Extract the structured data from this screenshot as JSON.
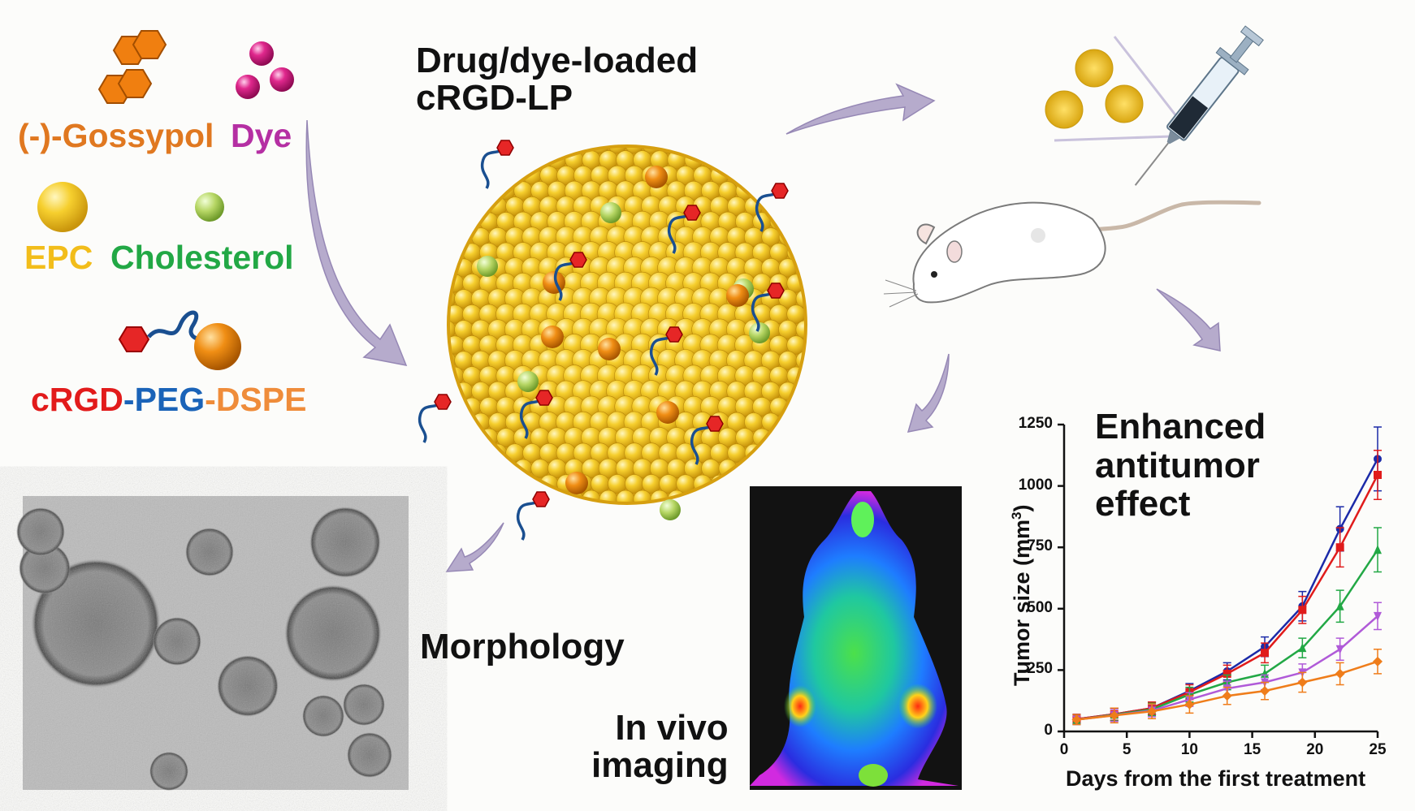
{
  "components": {
    "gossypol": "(-)-Gossypol",
    "dye": "Dye",
    "epc": "EPC",
    "cholesterol": "Cholesterol",
    "crgd": "cRGD",
    "dash1": "-",
    "peg": "PEG",
    "dash2": "-",
    "dspe": "DSPE"
  },
  "colors": {
    "gossypol": "#e07820",
    "dye": "#b52fa3",
    "epc": "#f2bd1a",
    "cholesterol": "#22a845",
    "crgd": "#e21b1b",
    "peg": "#1a63b8",
    "dspe": "#ef8c3a",
    "arrow": "#b4aacb",
    "liposome": "#f1c42c"
  },
  "liposome": {
    "title_line1": "Drug/dye-loaded",
    "title_line2": "cRGD-LP"
  },
  "labels": {
    "morphology": "Morphology",
    "invivo_line1": "In vivo",
    "invivo_line2": "imaging",
    "effect_line1": "Enhanced",
    "effect_line2": "antitumor",
    "effect_line3": "effect"
  },
  "icons": [
    "syringe-icon",
    "mouse-icon",
    "nanoparticle-icon",
    "arrow-icon"
  ],
  "chart_data": {
    "type": "line",
    "xlabel": "Days from the first treatment",
    "ylabel": "Tumor size (mm³)",
    "ylabel_main": "Tumor size (mm",
    "ylabel_sup": "3",
    "ylabel_end": ")",
    "xlim": [
      0,
      25
    ],
    "ylim": [
      0,
      1250
    ],
    "xticks": [
      "0",
      "5",
      "10",
      "15",
      "20",
      "25"
    ],
    "yticks": [
      "0",
      "250",
      "500",
      "750",
      "1000",
      "1250"
    ],
    "x": [
      1,
      4,
      7,
      10,
      13,
      16,
      19,
      22,
      25
    ],
    "series": [
      {
        "color": "#1b2aa8",
        "marker": "circle",
        "values": [
          50,
          70,
          95,
          165,
          245,
          345,
          510,
          825,
          1110
        ],
        "err": [
          20,
          25,
          25,
          30,
          35,
          40,
          60,
          90,
          130
        ]
      },
      {
        "color": "#e01b1b",
        "marker": "square",
        "values": [
          50,
          70,
          95,
          160,
          235,
          320,
          495,
          750,
          1045
        ],
        "err": [
          20,
          25,
          25,
          30,
          35,
          40,
          55,
          80,
          100
        ]
      },
      {
        "color": "#22a845",
        "marker": "triangle-up",
        "values": [
          48,
          68,
          90,
          150,
          200,
          235,
          340,
          510,
          740
        ],
        "err": [
          20,
          25,
          25,
          30,
          30,
          35,
          40,
          65,
          90
        ]
      },
      {
        "color": "#b05ad8",
        "marker": "triangle-down",
        "values": [
          48,
          66,
          85,
          130,
          175,
          200,
          240,
          335,
          470
        ],
        "err": [
          20,
          25,
          25,
          28,
          30,
          30,
          35,
          45,
          55
        ]
      },
      {
        "color": "#ef7d1a",
        "marker": "diamond",
        "values": [
          48,
          65,
          82,
          110,
          145,
          165,
          200,
          235,
          285
        ],
        "err": [
          20,
          30,
          30,
          35,
          35,
          35,
          40,
          45,
          50
        ]
      }
    ]
  }
}
